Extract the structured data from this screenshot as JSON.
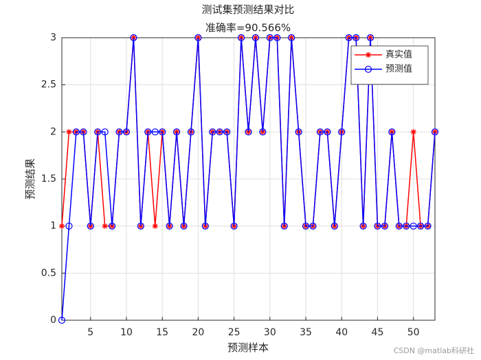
{
  "chart_data": {
    "type": "line",
    "title": "测试集预测结果对比",
    "subtitle": "准确率=90.566%",
    "x_label": "预测样本",
    "y_label": "预测结果",
    "x": [
      1,
      2,
      3,
      4,
      5,
      6,
      7,
      8,
      9,
      10,
      11,
      12,
      13,
      14,
      15,
      16,
      17,
      18,
      19,
      20,
      21,
      22,
      23,
      24,
      25,
      26,
      27,
      28,
      29,
      30,
      31,
      32,
      33,
      34,
      35,
      36,
      37,
      38,
      39,
      40,
      41,
      42,
      43,
      44,
      45,
      46,
      47,
      48,
      49,
      50,
      51,
      52,
      53
    ],
    "series": [
      {
        "name": "真实值",
        "color": "#ff0000",
        "marker": "*",
        "values": [
          1,
          2,
          2,
          2,
          1,
          2,
          1,
          1,
          2,
          2,
          3,
          1,
          2,
          1,
          2,
          1,
          2,
          1,
          2,
          3,
          1,
          2,
          2,
          2,
          1,
          3,
          2,
          3,
          2,
          3,
          3,
          1,
          3,
          2,
          1,
          1,
          2,
          2,
          1,
          2,
          3,
          3,
          1,
          3,
          1,
          1,
          2,
          1,
          1,
          2,
          1,
          1,
          2
        ]
      },
      {
        "name": "预测值",
        "color": "#0000ff",
        "marker": "o",
        "values": [
          0,
          1,
          2,
          2,
          1,
          2,
          2,
          1,
          2,
          2,
          3,
          1,
          2,
          2,
          2,
          1,
          2,
          1,
          2,
          3,
          1,
          2,
          2,
          2,
          1,
          3,
          2,
          3,
          2,
          3,
          3,
          1,
          3,
          2,
          1,
          1,
          2,
          2,
          1,
          2,
          3,
          3,
          1,
          3,
          1,
          1,
          2,
          1,
          1,
          1,
          1,
          1,
          2
        ]
      }
    ],
    "xlim": [
      1,
      53
    ],
    "xticks": [
      5,
      10,
      15,
      20,
      25,
      30,
      35,
      40,
      45,
      50
    ],
    "ylim": [
      0,
      3
    ],
    "yticks": [
      0,
      0.5,
      1,
      1.5,
      2,
      2.5,
      3
    ],
    "grid": true,
    "legend": "northeast",
    "watermark": "CSDN @matlab科研社"
  }
}
